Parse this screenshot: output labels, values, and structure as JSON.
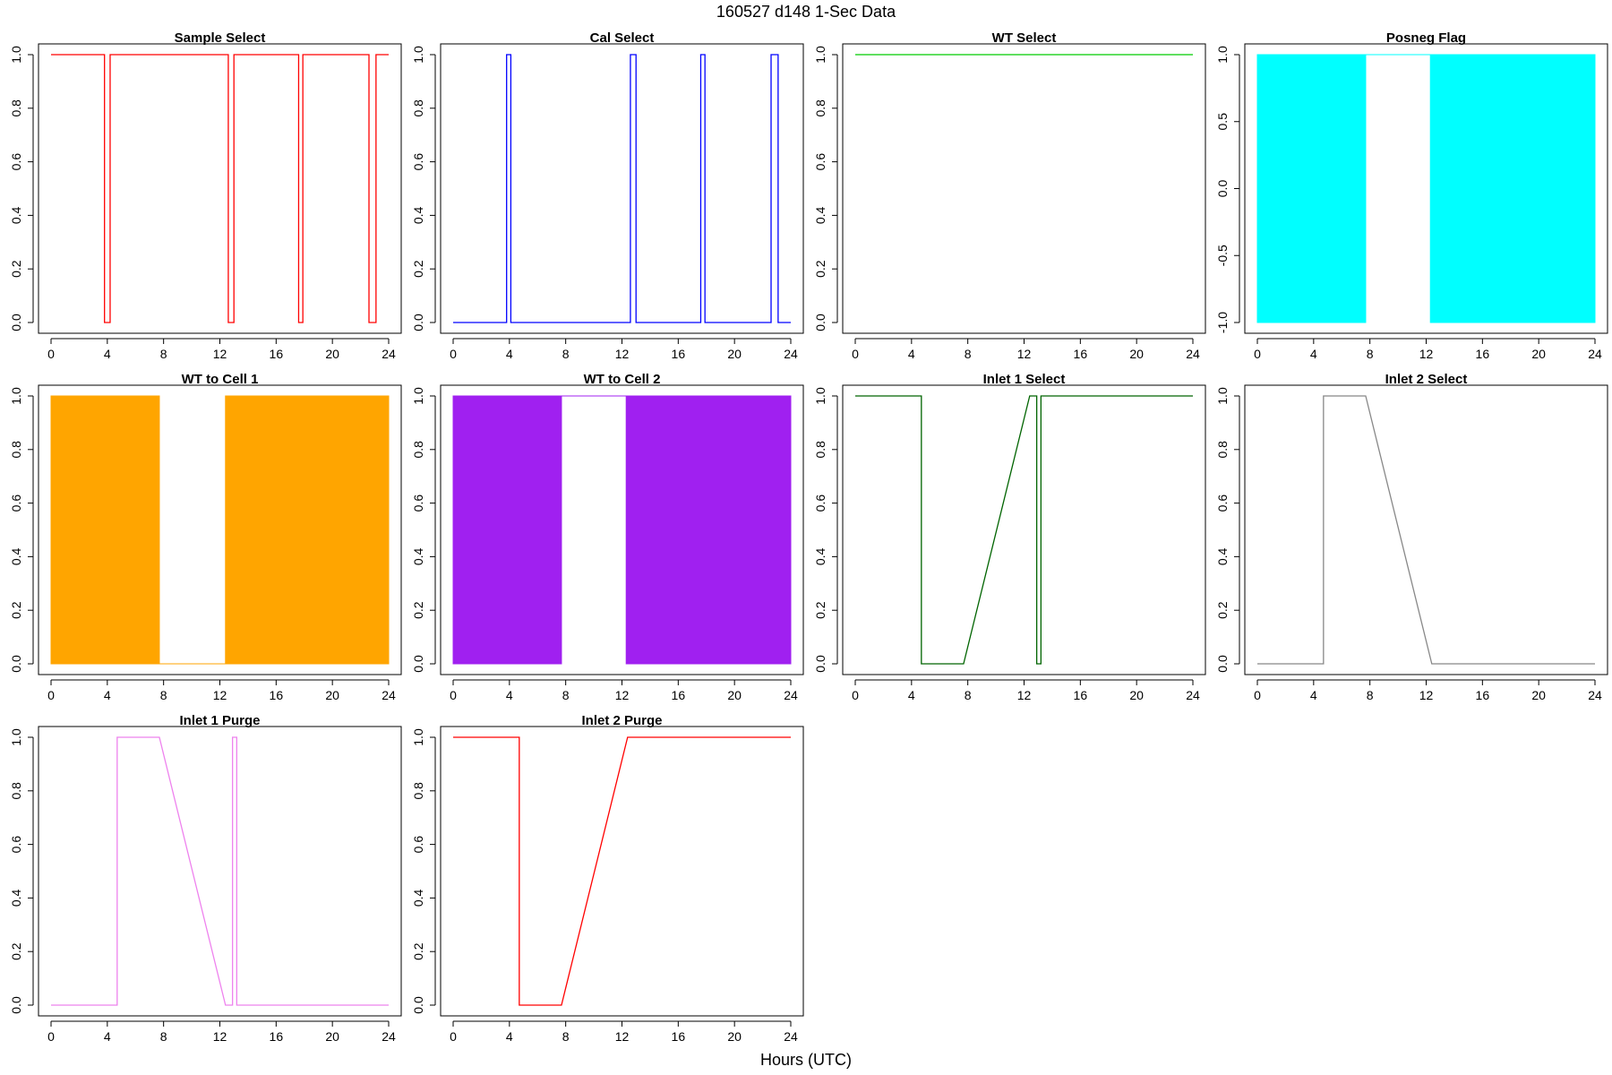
{
  "title": "160527   d148   1-Sec Data",
  "xlabel": "Hours (UTC)",
  "chart_data": [
    {
      "type": "line",
      "title": "Sample Select",
      "color": "#ff0000",
      "fill": false,
      "xlim": [
        0,
        24
      ],
      "xticks": [
        0,
        4,
        8,
        12,
        16,
        20,
        24
      ],
      "ylim": [
        0,
        1
      ],
      "yticks": [
        "0.0",
        "0.2",
        "0.4",
        "0.6",
        "0.8",
        "1.0"
      ],
      "x": [
        0,
        3.8,
        3.8,
        4.2,
        4.2,
        12.6,
        12.6,
        13.0,
        13.0,
        17.6,
        17.6,
        17.9,
        17.9,
        22.6,
        22.6,
        23.1,
        23.1,
        24
      ],
      "y": [
        1,
        1,
        0,
        0,
        1,
        1,
        0,
        0,
        1,
        1,
        0,
        0,
        1,
        1,
        0,
        0,
        1,
        1
      ]
    },
    {
      "type": "line",
      "title": "Cal Select",
      "color": "#0000ff",
      "fill": false,
      "xlim": [
        0,
        24
      ],
      "xticks": [
        0,
        4,
        8,
        12,
        16,
        20,
        24
      ],
      "ylim": [
        0,
        1
      ],
      "yticks": [
        "0.0",
        "0.2",
        "0.4",
        "0.6",
        "0.8",
        "1.0"
      ],
      "x": [
        0,
        3.8,
        3.8,
        4.1,
        4.1,
        12.6,
        12.6,
        13.0,
        13.0,
        17.6,
        17.6,
        17.9,
        17.9,
        22.6,
        22.6,
        23.1,
        23.1,
        24
      ],
      "y": [
        0,
        0,
        1,
        1,
        0,
        0,
        1,
        1,
        0,
        0,
        1,
        1,
        0,
        0,
        1,
        1,
        0,
        0
      ]
    },
    {
      "type": "line",
      "title": "WT Select",
      "color": "#00cc00",
      "fill": false,
      "xlim": [
        0,
        24
      ],
      "xticks": [
        0,
        4,
        8,
        12,
        16,
        20,
        24
      ],
      "ylim": [
        0,
        1
      ],
      "yticks": [
        "0.0",
        "0.2",
        "0.4",
        "0.6",
        "0.8",
        "1.0"
      ],
      "x": [
        0,
        24
      ],
      "y": [
        1,
        1
      ]
    },
    {
      "type": "area",
      "title": "Posneg Flag",
      "color": "#00ffff",
      "fill": true,
      "xlim": [
        0,
        24
      ],
      "xticks": [
        0,
        4,
        8,
        12,
        16,
        20,
        24
      ],
      "ylim": [
        -1,
        1
      ],
      "yticks": [
        "-1.0",
        "-0.5",
        "0.0",
        "0.5",
        "1.0"
      ],
      "x": [
        0,
        7.7,
        7.7,
        12.3,
        12.3,
        24
      ],
      "y": [
        1,
        1,
        1,
        1,
        1,
        1
      ],
      "y_low": [
        -1,
        -1,
        1,
        1,
        -1,
        -1
      ]
    },
    {
      "type": "area",
      "title": "WT to Cell 1",
      "color": "#ffa500",
      "fill": true,
      "xlim": [
        0,
        24
      ],
      "xticks": [
        0,
        4,
        8,
        12,
        16,
        20,
        24
      ],
      "ylim": [
        0,
        1
      ],
      "yticks": [
        "0.0",
        "0.2",
        "0.4",
        "0.6",
        "0.8",
        "1.0"
      ],
      "x": [
        0,
        7.7,
        7.7,
        12.4,
        12.4,
        24
      ],
      "y": [
        1,
        1,
        0,
        0,
        1,
        1
      ],
      "y_low": [
        0,
        0,
        0,
        0,
        0,
        0
      ]
    },
    {
      "type": "area",
      "title": "WT to Cell 2",
      "color": "#a020f0",
      "fill": true,
      "xlim": [
        0,
        24
      ],
      "xticks": [
        0,
        4,
        8,
        12,
        16,
        20,
        24
      ],
      "ylim": [
        0,
        1
      ],
      "yticks": [
        "0.0",
        "0.2",
        "0.4",
        "0.6",
        "0.8",
        "1.0"
      ],
      "x": [
        0,
        7.7,
        7.7,
        12.3,
        12.3,
        24
      ],
      "y": [
        1,
        1,
        1,
        1,
        1,
        1
      ],
      "y_low": [
        0,
        0,
        1,
        1,
        0,
        0
      ]
    },
    {
      "type": "line",
      "title": "Inlet 1 Select",
      "color": "#006400",
      "fill": false,
      "xlim": [
        0,
        24
      ],
      "xticks": [
        0,
        4,
        8,
        12,
        16,
        20,
        24
      ],
      "ylim": [
        0,
        1
      ],
      "yticks": [
        "0.0",
        "0.2",
        "0.4",
        "0.6",
        "0.8",
        "1.0"
      ],
      "x": [
        0,
        4.7,
        4.7,
        7.7,
        12.4,
        12.9,
        12.9,
        13.2,
        13.2,
        24
      ],
      "y": [
        1,
        1,
        0,
        0,
        1,
        1,
        0,
        0,
        1,
        1
      ]
    },
    {
      "type": "line",
      "title": "Inlet 2 Select",
      "color": "#888888",
      "fill": false,
      "xlim": [
        0,
        24
      ],
      "xticks": [
        0,
        4,
        8,
        12,
        16,
        20,
        24
      ],
      "ylim": [
        0,
        1
      ],
      "yticks": [
        "0.0",
        "0.2",
        "0.4",
        "0.6",
        "0.8",
        "1.0"
      ],
      "x": [
        0,
        4.7,
        4.7,
        7.7,
        12.4,
        24
      ],
      "y": [
        0,
        0,
        1,
        1,
        0,
        0
      ]
    },
    {
      "type": "line",
      "title": "Inlet 1 Purge",
      "color": "#ee82ee",
      "fill": false,
      "xlim": [
        0,
        24
      ],
      "xticks": [
        0,
        4,
        8,
        12,
        16,
        20,
        24
      ],
      "ylim": [
        0,
        1
      ],
      "yticks": [
        "0.0",
        "0.2",
        "0.4",
        "0.6",
        "0.8",
        "1.0"
      ],
      "x": [
        0,
        4.7,
        4.7,
        7.7,
        12.4,
        12.9,
        12.9,
        13.2,
        13.2,
        24
      ],
      "y": [
        0,
        0,
        1,
        1,
        0,
        0,
        1,
        1,
        0,
        0
      ]
    },
    {
      "type": "line",
      "title": "Inlet 2 Purge",
      "color": "#ff0000",
      "fill": false,
      "xlim": [
        0,
        24
      ],
      "xticks": [
        0,
        4,
        8,
        12,
        16,
        20,
        24
      ],
      "ylim": [
        0,
        1
      ],
      "yticks": [
        "0.0",
        "0.2",
        "0.4",
        "0.6",
        "0.8",
        "1.0"
      ],
      "x": [
        0,
        4.7,
        4.7,
        7.7,
        12.4,
        24
      ],
      "y": [
        1,
        1,
        0,
        0,
        1,
        1
      ]
    }
  ]
}
